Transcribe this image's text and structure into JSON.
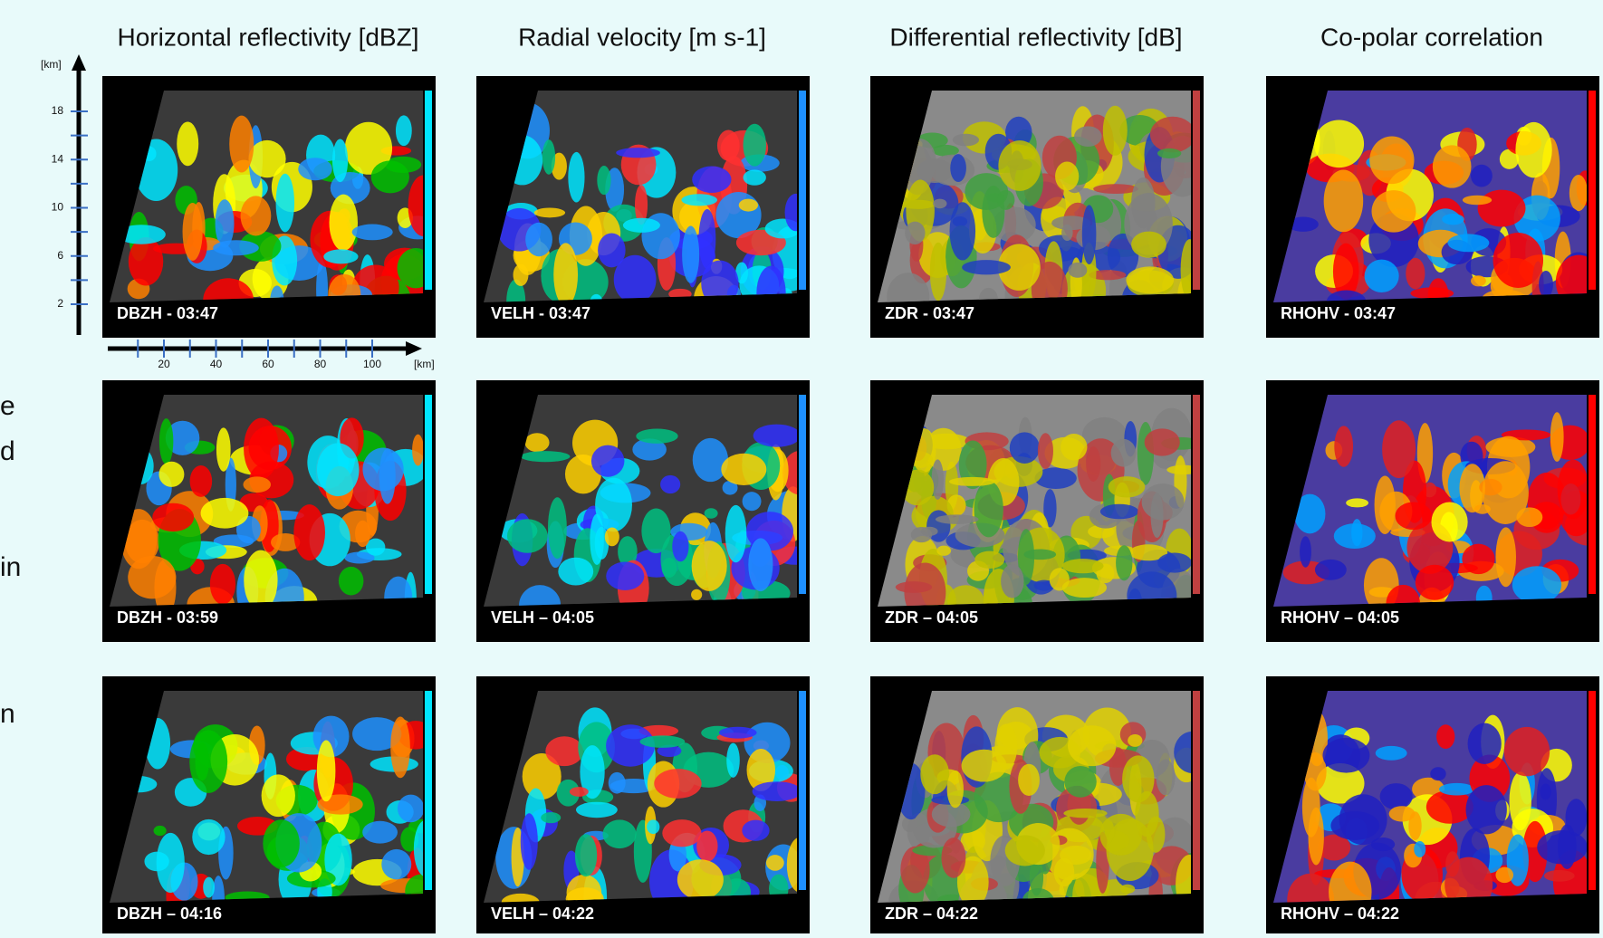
{
  "column_headers": [
    "Horizontal reflectivity [dBZ]",
    "Radial velocity [m s-1]",
    "Differential reflectivity [dB]",
    "Co-polar correlation"
  ],
  "panels": [
    [
      "DBZH - 03:47",
      "VELH - 03:47",
      "ZDR - 03:47",
      "RHOHV - 03:47"
    ],
    [
      "DBZH - 03:59",
      "VELH – 04:05",
      "ZDR – 04:05",
      "RHOHV – 04:05"
    ],
    [
      "DBZH – 04:16",
      "VELH – 04:22",
      "ZDR – 04:22",
      "RHOHV – 04:22"
    ]
  ],
  "y_axis": {
    "label": "[km]",
    "ticks": [
      2,
      6,
      10,
      14,
      18
    ]
  },
  "x_axis": {
    "label": "[km]",
    "ticks": [
      20,
      40,
      60,
      80,
      100
    ]
  },
  "side_text": [
    "e",
    "d",
    "in",
    "n"
  ]
}
